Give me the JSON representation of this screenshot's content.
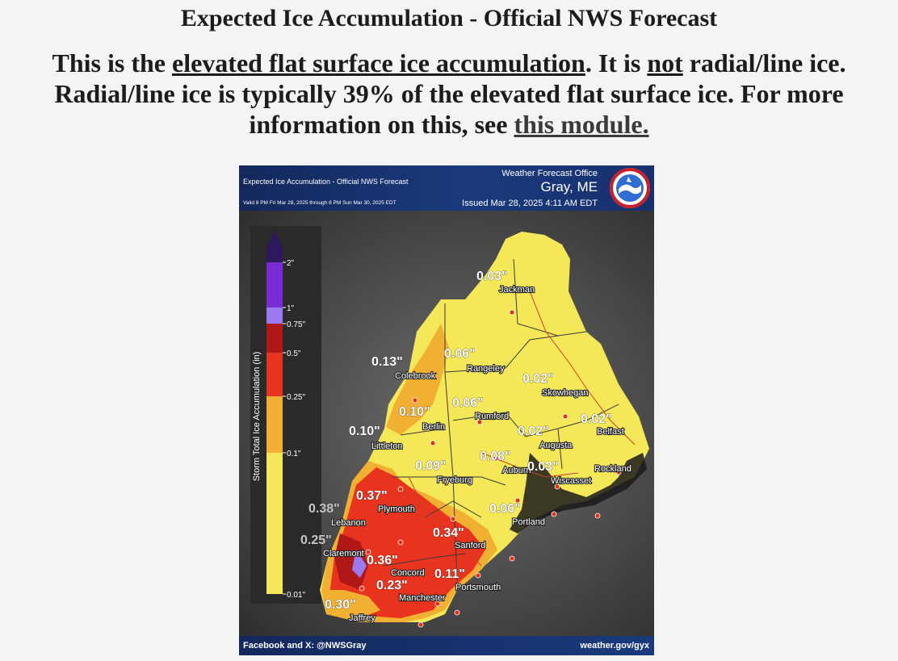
{
  "page": {
    "title": "Expected Ice Accumulation - Official NWS Forecast",
    "intro": {
      "p1": "This is the ",
      "link1": "elevated flat surface ice accumulation",
      "p2": ". It is ",
      "emph": "not",
      "p3": " radial/line ice. Radial/line ice is typically 39% of the elevated flat surface ice. For more information on this, see ",
      "link2": "this module."
    }
  },
  "map": {
    "header_title": "Expected Ice Accumulation - Official NWS Forecast",
    "valid": "Valid 8 PM Fri Mar 28, 2025 through 8 PM Sun Mar 30, 2025 EDT",
    "office": "Weather Forecast Office",
    "location": "Gray, ME",
    "issued": "Issued Mar 28, 2025 4:11 AM EDT",
    "footer_left": "Facebook and X: @NWSGray",
    "footer_right": "weather.gov/gyx",
    "legend": {
      "axis_title": "Storm Total Ice Accumulation (in)",
      "labels": [
        "2\"",
        "1\"",
        "0.75\"",
        "0.5\"",
        "0.25\"",
        "0.1\"",
        "0.01\""
      ],
      "colors": {
        "over_2": "#2d1860",
        "1_to_2": "#7a2bd6",
        "0_75_to_1": "#9b7af0",
        "0_5_to_0_75": "#b01818",
        "0_25_to_0_5": "#e8341f",
        "0_1_to_0_25": "#f2b032",
        "0_01_to_0_1": "#f4e758"
      }
    },
    "locations": [
      {
        "name": "Jackman",
        "amount": "0.03\""
      },
      {
        "name": "Colebrook",
        "amount": "0.13\""
      },
      {
        "name": "Rangeley",
        "amount": "0.06\""
      },
      {
        "name": "Skowhegan",
        "amount": "0.02\""
      },
      {
        "name": "Berlin",
        "amount": "0.10\""
      },
      {
        "name": "Rumford",
        "amount": "0.06\""
      },
      {
        "name": "Belfast",
        "amount": "0.02\""
      },
      {
        "name": "Littleton",
        "amount": "0.10\""
      },
      {
        "name": "Augusta",
        "amount": "0.02\""
      },
      {
        "name": "Auburn",
        "amount": "0.08\""
      },
      {
        "name": "Wiscasset",
        "amount": "0.03\""
      },
      {
        "name": "Rockland",
        "amount": ""
      },
      {
        "name": "Fryeburg",
        "amount": "0.09\""
      },
      {
        "name": "Plymouth",
        "amount": "0.37\""
      },
      {
        "name": "Lebanon",
        "amount": "0.38\""
      },
      {
        "name": "Portland",
        "amount": "0.06\""
      },
      {
        "name": "Sanford",
        "amount": "0.34\""
      },
      {
        "name": "Claremont",
        "amount": "0.25\""
      },
      {
        "name": "Concord",
        "amount": "0.36\""
      },
      {
        "name": "Portsmouth",
        "amount": "0.11\""
      },
      {
        "name": "Manchester",
        "amount": "0.23\""
      },
      {
        "name": "Jaffrey",
        "amount": "0.30\""
      }
    ]
  }
}
